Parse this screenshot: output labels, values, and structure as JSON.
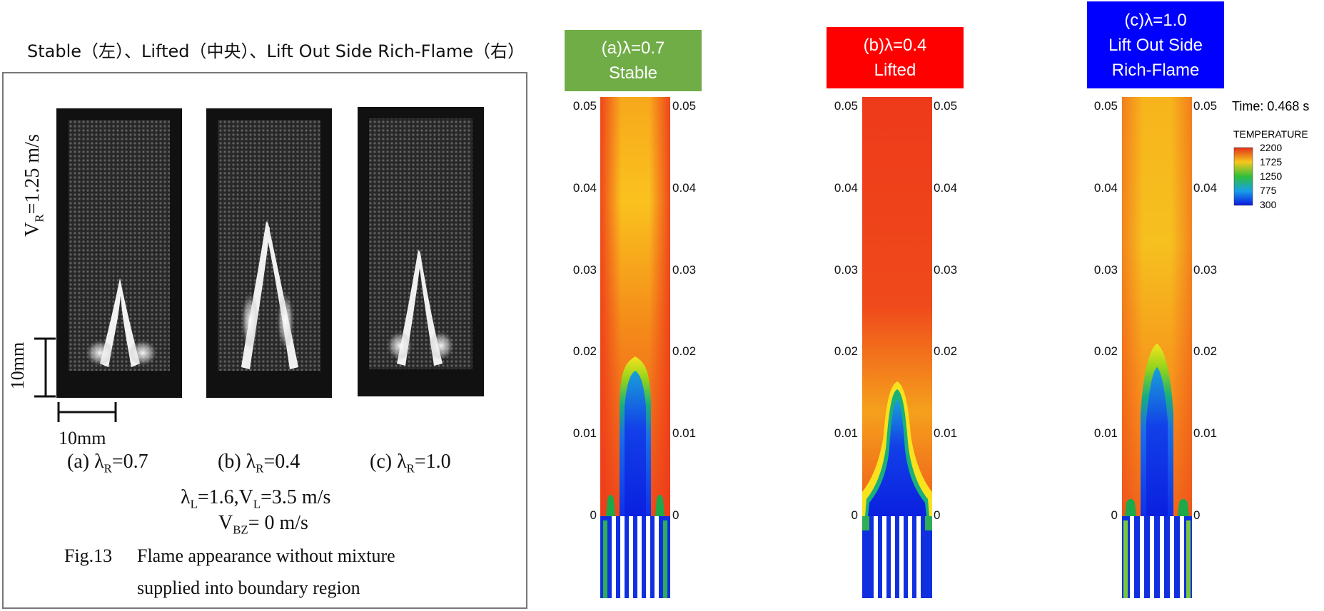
{
  "header_caption": "Stable（左）、Lifted（中央）、Lift Out Side Rich-Flame（右）",
  "photo": {
    "vr_label": "V",
    "vr_sub": "R",
    "vr_value": "=1.25 m/s",
    "scale_v_label": "10mm",
    "scale_h_label": "10mm",
    "sub_captions": [
      {
        "pre": "(a) λ",
        "sub": "R",
        "post": "=0.7"
      },
      {
        "pre": "(b) λ",
        "sub": "R",
        "post": "=0.4"
      },
      {
        "pre": "(c) λ",
        "sub": "R",
        "post": "=1.0"
      }
    ],
    "cond1_pre": "λ",
    "cond1_sub": "L",
    "cond1_mid": "=1.6,V",
    "cond1_sub2": "L",
    "cond1_post": "=3.5 m/s",
    "cond2_pre": "V",
    "cond2_sub": "BZ",
    "cond2_post": "= 0 m/s",
    "fig_label": "Fig.13",
    "fig_line1": "Flame appearance without mixture",
    "fig_line2": "supplied into boundary region"
  },
  "sim_panels": [
    {
      "line1": "(a)λ=0.7",
      "line2": "Stable",
      "line3": "",
      "color": "#70ad47"
    },
    {
      "line1": "(b)λ=0.4",
      "line2": "Lifted",
      "line3": "",
      "color": "#ff0000"
    },
    {
      "line1": "(c)λ=1.0",
      "line2": "Lift Out Side",
      "line3": "Rich-Flame",
      "color": "#0000ff"
    }
  ],
  "y_ticks": [
    "0.05",
    "0.04",
    "0.03",
    "0.02",
    "0.01",
    "0"
  ],
  "time_label": "Time: 0.468 s",
  "legend": {
    "title": "TEMPERATURE",
    "values": [
      "2200",
      "1725",
      "1250",
      "775",
      "300"
    ]
  }
}
